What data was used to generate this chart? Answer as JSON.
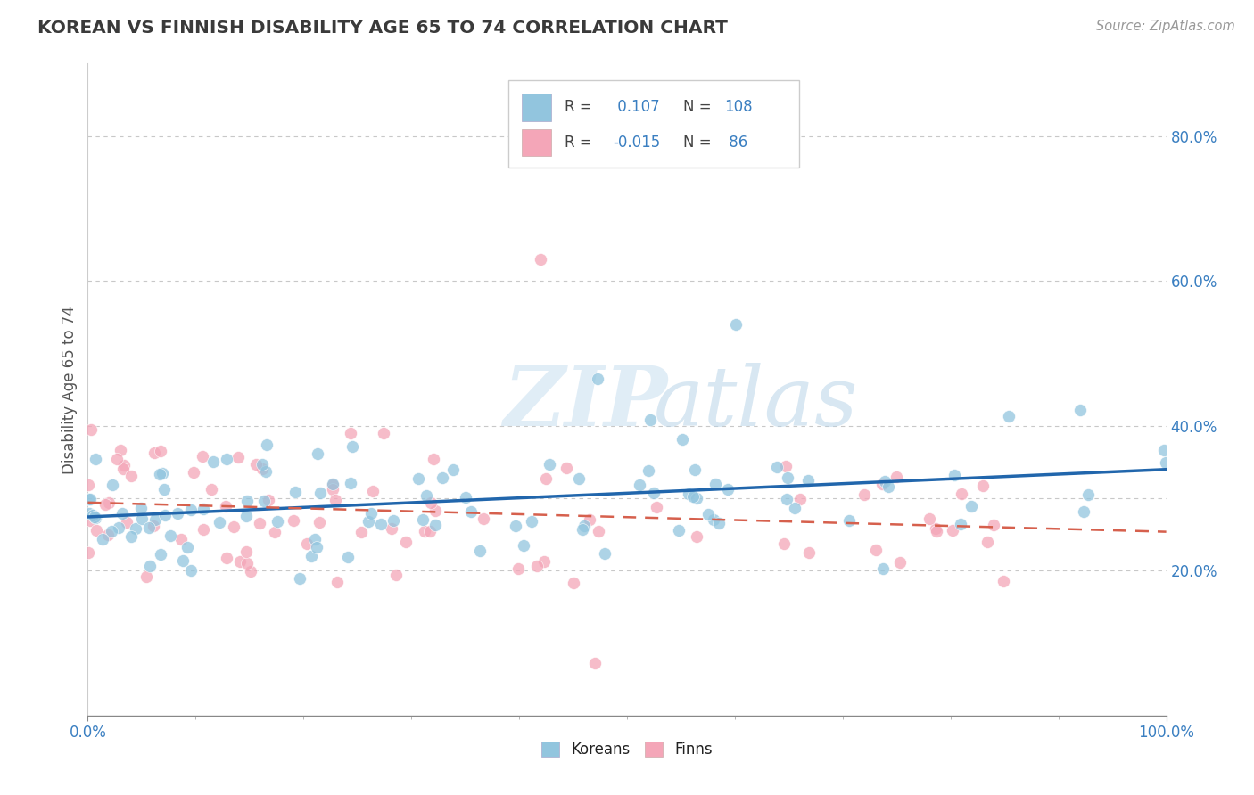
{
  "title": "KOREAN VS FINNISH DISABILITY AGE 65 TO 74 CORRELATION CHART",
  "source": "Source: ZipAtlas.com",
  "ylabel": "Disability Age 65 to 74",
  "watermark_zip": "ZIP",
  "watermark_atlas": "atlas",
  "legend_korean_R": " 0.107",
  "legend_korean_N": "108",
  "legend_finn_R": "-0.015",
  "legend_finn_N": " 86",
  "xlim": [
    0.0,
    1.0
  ],
  "ylim": [
    0.0,
    0.9
  ],
  "right_yticks": [
    0.2,
    0.4,
    0.6,
    0.8
  ],
  "right_ytick_labels": [
    "20.0%",
    "40.0%",
    "60.0%",
    "80.0%"
  ],
  "grid_yticks": [
    0.2,
    0.3,
    0.4,
    0.6,
    0.8
  ],
  "blue_color": "#92c5de",
  "pink_color": "#f4a6b8",
  "trend_blue": "#2166ac",
  "trend_pink": "#d6604d",
  "background": "#ffffff",
  "grid_color": "#c8c8c8",
  "title_color": "#3a3a3a",
  "source_color": "#999999",
  "legend_text_color": "#3a7fc1",
  "axis_label_color": "#3a7fc1"
}
